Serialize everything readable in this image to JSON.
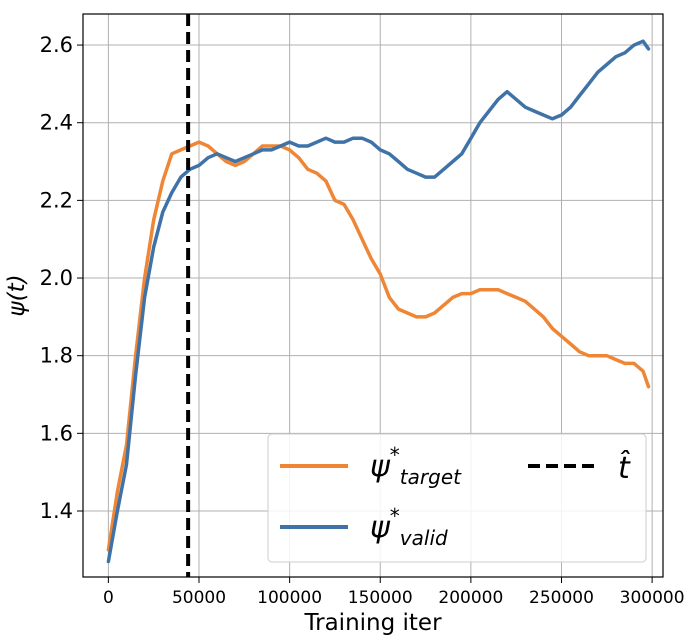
{
  "chart_data": {
    "type": "line",
    "xlabel": "Training iter",
    "ylabel": "ψ(t)",
    "xlim": [
      -14000,
      306000
    ],
    "ylim": [
      1.23,
      2.68
    ],
    "xticks": [
      0,
      50000,
      100000,
      150000,
      200000,
      250000,
      300000
    ],
    "yticks": [
      1.4,
      1.6,
      1.8,
      2.0,
      2.2,
      2.4,
      2.6
    ],
    "grid": true,
    "legend_position": "bottom-right",
    "vline": {
      "name": "t̂",
      "x": 44000,
      "color": "#000000",
      "style": "dashed"
    },
    "series": [
      {
        "name": "ψ*target",
        "color": "#ef8636",
        "x": [
          0,
          5000,
          10000,
          15000,
          20000,
          25000,
          30000,
          35000,
          40000,
          45000,
          50000,
          55000,
          60000,
          65000,
          70000,
          75000,
          80000,
          85000,
          90000,
          95000,
          100000,
          105000,
          110000,
          115000,
          120000,
          125000,
          130000,
          135000,
          140000,
          145000,
          150000,
          155000,
          160000,
          165000,
          170000,
          175000,
          180000,
          185000,
          190000,
          195000,
          200000,
          205000,
          210000,
          215000,
          220000,
          225000,
          230000,
          235000,
          240000,
          245000,
          250000,
          255000,
          260000,
          265000,
          270000,
          275000,
          280000,
          285000,
          290000,
          295000,
          298000
        ],
        "values": [
          1.3,
          1.45,
          1.57,
          1.8,
          2.0,
          2.15,
          2.25,
          2.32,
          2.33,
          2.34,
          2.35,
          2.34,
          2.32,
          2.3,
          2.29,
          2.3,
          2.32,
          2.34,
          2.34,
          2.34,
          2.33,
          2.31,
          2.28,
          2.27,
          2.25,
          2.2,
          2.19,
          2.15,
          2.1,
          2.05,
          2.01,
          1.95,
          1.92,
          1.91,
          1.9,
          1.9,
          1.91,
          1.93,
          1.95,
          1.96,
          1.96,
          1.97,
          1.97,
          1.97,
          1.96,
          1.95,
          1.94,
          1.92,
          1.9,
          1.87,
          1.85,
          1.83,
          1.81,
          1.8,
          1.8,
          1.8,
          1.79,
          1.78,
          1.78,
          1.76,
          1.72
        ]
      },
      {
        "name": "ψ*valid",
        "color": "#3f73a8",
        "x": [
          0,
          5000,
          10000,
          15000,
          20000,
          25000,
          30000,
          35000,
          40000,
          45000,
          50000,
          55000,
          60000,
          65000,
          70000,
          75000,
          80000,
          85000,
          90000,
          95000,
          100000,
          105000,
          110000,
          115000,
          120000,
          125000,
          130000,
          135000,
          140000,
          145000,
          150000,
          155000,
          160000,
          165000,
          170000,
          175000,
          180000,
          185000,
          190000,
          195000,
          200000,
          205000,
          210000,
          215000,
          220000,
          225000,
          230000,
          235000,
          240000,
          245000,
          250000,
          255000,
          260000,
          265000,
          270000,
          275000,
          280000,
          285000,
          290000,
          295000,
          298000
        ],
        "values": [
          1.27,
          1.4,
          1.52,
          1.75,
          1.95,
          2.08,
          2.17,
          2.22,
          2.26,
          2.28,
          2.29,
          2.31,
          2.32,
          2.31,
          2.3,
          2.31,
          2.32,
          2.33,
          2.33,
          2.34,
          2.35,
          2.34,
          2.34,
          2.35,
          2.36,
          2.35,
          2.35,
          2.36,
          2.36,
          2.35,
          2.33,
          2.32,
          2.3,
          2.28,
          2.27,
          2.26,
          2.26,
          2.28,
          2.3,
          2.32,
          2.36,
          2.4,
          2.43,
          2.46,
          2.48,
          2.46,
          2.44,
          2.43,
          2.42,
          2.41,
          2.42,
          2.44,
          2.47,
          2.5,
          2.53,
          2.55,
          2.57,
          2.58,
          2.6,
          2.61,
          2.59
        ]
      }
    ]
  }
}
